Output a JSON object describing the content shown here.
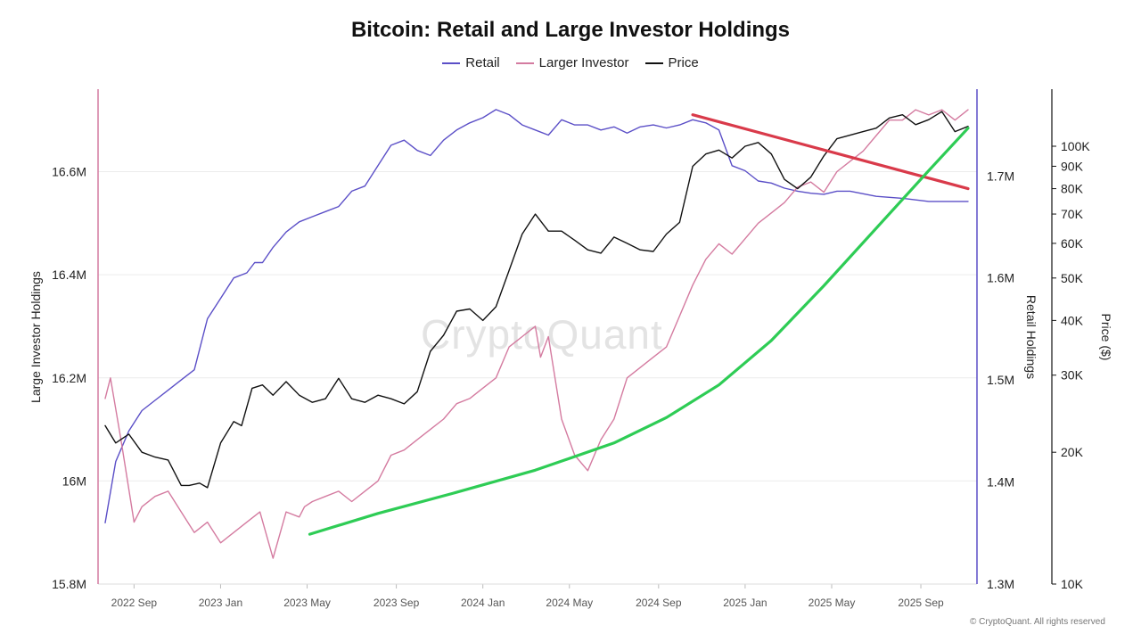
{
  "chart_data": {
    "type": "line",
    "title": "Bitcoin: Retail and Large Investor Holdings",
    "watermark": "CryptoQuant",
    "copyright": "© CryptoQuant. All rights reserved",
    "x_ticks": [
      "2022 Sep",
      "2023 Jan",
      "2023 May",
      "2023 Sep",
      "2024 Jan",
      "2024 May",
      "2024 Sep",
      "2025 Jan",
      "2025 May",
      "2025 Sep"
    ],
    "x_range": [
      "2022-07",
      "2025-11"
    ],
    "y_left": {
      "label": "Large Investor Holdings",
      "ticks": [
        "15.8M",
        "16M",
        "16.2M",
        "16.4M",
        "16.6M"
      ],
      "range": [
        15.8,
        16.76
      ]
    },
    "y_right1": {
      "label": "Retail Holdings",
      "ticks": [
        "1.3M",
        "1.4M",
        "1.5M",
        "1.6M",
        "1.7M"
      ],
      "range": [
        1.3,
        1.785
      ]
    },
    "y_right2": {
      "label": "Price ($)",
      "scale": "log",
      "ticks": [
        "10K",
        "20K",
        "30K",
        "40K",
        "50K",
        "60K",
        "70K",
        "80K",
        "90K",
        "100K"
      ],
      "range": [
        10000,
        135000
      ]
    },
    "grid": true,
    "legend_position": "top",
    "series": [
      {
        "name": "Retail",
        "color": "#5b4fc7",
        "axis": "right1",
        "x": [
          2022.56,
          2022.6,
          2022.65,
          2022.7,
          2022.75,
          2022.8,
          2022.85,
          2022.9,
          2022.95,
          2023.0,
          2023.05,
          2023.1,
          2023.13,
          2023.16,
          2023.2,
          2023.25,
          2023.3,
          2023.35,
          2023.4,
          2023.45,
          2023.5,
          2023.55,
          2023.6,
          2023.65,
          2023.7,
          2023.75,
          2023.8,
          2023.85,
          2023.9,
          2023.95,
          2024.0,
          2024.05,
          2024.1,
          2024.15,
          2024.2,
          2024.25,
          2024.3,
          2024.35,
          2024.4,
          2024.45,
          2024.5,
          2024.55,
          2024.6,
          2024.65,
          2024.7,
          2024.75,
          2024.8,
          2024.85,
          2024.9,
          2024.95,
          2025.0,
          2025.05,
          2025.1,
          2025.15,
          2025.2,
          2025.25,
          2025.3,
          2025.35,
          2025.4,
          2025.5,
          2025.6,
          2025.7,
          2025.8,
          2025.85
        ],
        "values": [
          1.36,
          1.42,
          1.45,
          1.47,
          1.48,
          1.49,
          1.5,
          1.51,
          1.56,
          1.58,
          1.6,
          1.605,
          1.615,
          1.615,
          1.63,
          1.645,
          1.655,
          1.66,
          1.665,
          1.67,
          1.685,
          1.69,
          1.71,
          1.73,
          1.735,
          1.725,
          1.72,
          1.735,
          1.745,
          1.752,
          1.757,
          1.765,
          1.76,
          1.75,
          1.745,
          1.74,
          1.755,
          1.75,
          1.75,
          1.745,
          1.748,
          1.742,
          1.748,
          1.75,
          1.747,
          1.75,
          1.755,
          1.752,
          1.745,
          1.71,
          1.705,
          1.695,
          1.693,
          1.688,
          1.685,
          1.683,
          1.682,
          1.685,
          1.685,
          1.68,
          1.678,
          1.675,
          1.675,
          1.675
        ]
      },
      {
        "name": "Larger Investor",
        "color": "#d47ba0",
        "axis": "left",
        "x": [
          2022.56,
          2022.58,
          2022.62,
          2022.67,
          2022.7,
          2022.75,
          2022.8,
          2022.85,
          2022.9,
          2022.95,
          2023.0,
          2023.05,
          2023.1,
          2023.15,
          2023.2,
          2023.25,
          2023.3,
          2023.32,
          2023.35,
          2023.4,
          2023.45,
          2023.5,
          2023.55,
          2023.6,
          2023.65,
          2023.7,
          2023.75,
          2023.8,
          2023.85,
          2023.9,
          2023.95,
          2024.0,
          2024.05,
          2024.1,
          2024.15,
          2024.2,
          2024.22,
          2024.25,
          2024.3,
          2024.35,
          2024.4,
          2024.45,
          2024.5,
          2024.55,
          2024.6,
          2024.65,
          2024.7,
          2024.75,
          2024.8,
          2024.85,
          2024.9,
          2024.95,
          2025.0,
          2025.05,
          2025.1,
          2025.15,
          2025.2,
          2025.25,
          2025.3,
          2025.35,
          2025.4,
          2025.45,
          2025.5,
          2025.55,
          2025.6,
          2025.65,
          2025.7,
          2025.75,
          2025.8,
          2025.85
        ],
        "values": [
          16.16,
          16.2,
          16.08,
          15.92,
          15.95,
          15.97,
          15.98,
          15.94,
          15.9,
          15.92,
          15.88,
          15.9,
          15.92,
          15.94,
          15.85,
          15.94,
          15.93,
          15.95,
          15.96,
          15.97,
          15.98,
          15.96,
          15.98,
          16.0,
          16.05,
          16.06,
          16.08,
          16.1,
          16.12,
          16.15,
          16.16,
          16.18,
          16.2,
          16.26,
          16.28,
          16.3,
          16.24,
          16.28,
          16.12,
          16.05,
          16.02,
          16.08,
          16.12,
          16.2,
          16.22,
          16.24,
          16.26,
          16.32,
          16.38,
          16.43,
          16.46,
          16.44,
          16.47,
          16.5,
          16.52,
          16.54,
          16.57,
          16.58,
          16.56,
          16.6,
          16.62,
          16.64,
          16.67,
          16.7,
          16.7,
          16.72,
          16.71,
          16.72,
          16.7,
          16.72
        ]
      },
      {
        "name": "Price",
        "color": "#111111",
        "axis": "right2",
        "x": [
          2022.56,
          2022.6,
          2022.65,
          2022.7,
          2022.75,
          2022.8,
          2022.85,
          2022.88,
          2022.92,
          2022.95,
          2023.0,
          2023.05,
          2023.08,
          2023.12,
          2023.16,
          2023.2,
          2023.25,
          2023.3,
          2023.35,
          2023.4,
          2023.45,
          2023.5,
          2023.55,
          2023.6,
          2023.65,
          2023.7,
          2023.75,
          2023.8,
          2023.85,
          2023.9,
          2023.95,
          2024.0,
          2024.05,
          2024.1,
          2024.15,
          2024.2,
          2024.25,
          2024.3,
          2024.35,
          2024.4,
          2024.45,
          2024.5,
          2024.55,
          2024.6,
          2024.65,
          2024.7,
          2024.75,
          2024.8,
          2024.85,
          2024.9,
          2024.95,
          2025.0,
          2025.05,
          2025.1,
          2025.15,
          2025.2,
          2025.25,
          2025.3,
          2025.35,
          2025.4,
          2025.45,
          2025.5,
          2025.55,
          2025.6,
          2025.65,
          2025.7,
          2025.75,
          2025.8,
          2025.85
        ],
        "values": [
          23000,
          21000,
          22000,
          20000,
          19500,
          19200,
          16800,
          16800,
          17000,
          16600,
          21000,
          23500,
          23000,
          28000,
          28500,
          27000,
          29000,
          27000,
          26000,
          26500,
          29500,
          26500,
          26000,
          27000,
          26500,
          25800,
          27500,
          34000,
          37000,
          42000,
          42500,
          40000,
          43000,
          52000,
          63000,
          70000,
          64000,
          64000,
          61000,
          58000,
          57000,
          62000,
          60000,
          58000,
          57500,
          63000,
          67000,
          90000,
          96000,
          98000,
          94000,
          100000,
          102000,
          96000,
          84000,
          80000,
          85000,
          95000,
          104000,
          106000,
          108000,
          110000,
          116000,
          118000,
          112000,
          115000,
          120000,
          108000,
          111000
        ]
      },
      {
        "name": "",
        "color": "#d93a4a",
        "axis": "right2",
        "role": "trend",
        "x": [
          2024.8,
          2025.85
        ],
        "values": [
          118000,
          80000
        ]
      },
      {
        "name": "",
        "color": "#2ecc55",
        "axis": "right2",
        "role": "trend",
        "x": [
          2023.34,
          2023.6,
          2023.9,
          2024.2,
          2024.5,
          2024.7,
          2024.9,
          2025.1,
          2025.3,
          2025.5,
          2025.7,
          2025.85
        ],
        "values": [
          13000,
          14500,
          16200,
          18200,
          21000,
          24000,
          28500,
          36000,
          48000,
          65000,
          88000,
          110000
        ]
      }
    ]
  }
}
